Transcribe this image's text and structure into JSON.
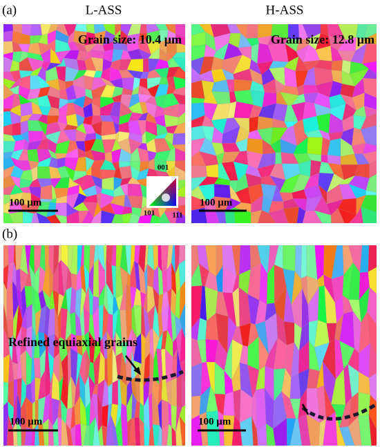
{
  "panel_a": {
    "label": "(a)",
    "left": {
      "title": "L-ASS",
      "grain_size": "Grain size: 10.4 μm",
      "scale_bar": "100 μm",
      "legend": {
        "top": "001",
        "left": "101",
        "right": "111"
      }
    },
    "right": {
      "title": "H-ASS",
      "grain_size": "Grain size: 12.8 μm",
      "scale_bar": "100 μm"
    }
  },
  "panel_b": {
    "label": "(b)",
    "left": {
      "annotation": "Refined equiaxial grains",
      "scale_bar": "100 μm"
    },
    "right": {
      "scale_bar": "100 μm"
    }
  }
}
